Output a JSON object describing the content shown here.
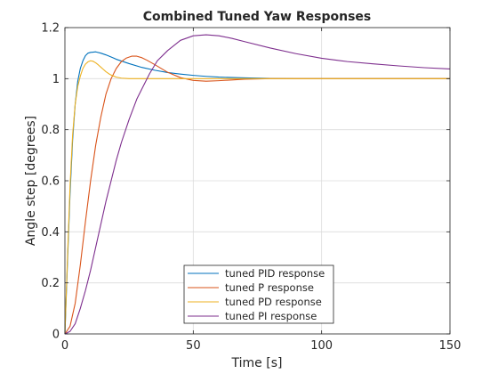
{
  "chart_data": {
    "type": "line",
    "title": "Combined Tuned Yaw Responses",
    "xlabel": "Time [s]",
    "ylabel": "Angle step [degrees]",
    "xlim": [
      0,
      150
    ],
    "ylim": [
      0,
      1.2
    ],
    "xticks": [
      0,
      50,
      100,
      150
    ],
    "yticks": [
      0,
      0.2,
      0.4,
      0.6,
      0.8,
      1,
      1.2
    ],
    "xtick_labels": [
      "0",
      "50",
      "100",
      "150"
    ],
    "ytick_labels": [
      "0",
      "0.2",
      "0.4",
      "0.6",
      "0.8",
      "1",
      "1.2"
    ],
    "grid": true,
    "legend_position": "bottom-center",
    "series": [
      {
        "name": "tuned PID response",
        "color": "#0072BD",
        "x": [
          0,
          1,
          2,
          3,
          4,
          5,
          6,
          7,
          8,
          9,
          10,
          11,
          12,
          14,
          16,
          18,
          20,
          25,
          30,
          35,
          40,
          45,
          50,
          55,
          60,
          70,
          80,
          90,
          100,
          110,
          120,
          130,
          140,
          150
        ],
        "y": [
          0,
          0.28,
          0.55,
          0.76,
          0.9,
          0.99,
          1.04,
          1.07,
          1.09,
          1.1,
          1.103,
          1.104,
          1.105,
          1.1,
          1.093,
          1.085,
          1.076,
          1.059,
          1.044,
          1.033,
          1.024,
          1.018,
          1.013,
          1.009,
          1.006,
          1.003,
          1.001,
          1.0,
          1.0,
          1.0,
          1.0,
          1.0,
          1.0,
          1.0
        ]
      },
      {
        "name": "tuned P response",
        "color": "#D95319",
        "x": [
          0,
          2,
          4,
          6,
          8,
          10,
          12,
          14,
          16,
          18,
          20,
          22,
          24,
          26,
          28,
          30,
          32,
          35,
          40,
          45,
          50,
          55,
          60,
          65,
          70,
          80,
          90,
          100,
          110,
          120,
          130,
          140,
          150
        ],
        "y": [
          0,
          0.03,
          0.12,
          0.27,
          0.44,
          0.6,
          0.74,
          0.85,
          0.94,
          1.0,
          1.04,
          1.067,
          1.081,
          1.088,
          1.088,
          1.082,
          1.072,
          1.055,
          1.025,
          1.004,
          0.993,
          0.99,
          0.992,
          0.995,
          0.998,
          1.0,
          1.0,
          1.0,
          1.0,
          1.0,
          1.0,
          1.0,
          1.0
        ]
      },
      {
        "name": "tuned PD response",
        "color": "#EDB120",
        "x": [
          0,
          1,
          2,
          3,
          4,
          5,
          6,
          7,
          8,
          9,
          10,
          11,
          12,
          13,
          14,
          15,
          16,
          17,
          18,
          20,
          22,
          25,
          30,
          40,
          50,
          60,
          80,
          100,
          120,
          150
        ],
        "y": [
          0,
          0.3,
          0.58,
          0.78,
          0.9,
          0.97,
          1.01,
          1.04,
          1.057,
          1.066,
          1.07,
          1.068,
          1.062,
          1.054,
          1.045,
          1.036,
          1.027,
          1.02,
          1.014,
          1.006,
          1.002,
          1.0,
          1.0,
          1.0,
          1.0,
          1.0,
          1.0,
          1.0,
          1.0,
          1.0
        ]
      },
      {
        "name": "tuned PI response",
        "color": "#7E2F8E",
        "x": [
          0,
          2,
          4,
          6,
          8,
          10,
          12,
          14,
          16,
          18,
          20,
          22,
          25,
          28,
          30,
          33,
          36,
          40,
          45,
          50,
          55,
          60,
          65,
          70,
          80,
          90,
          100,
          110,
          120,
          130,
          140,
          150
        ],
        "y": [
          0,
          0.01,
          0.04,
          0.1,
          0.17,
          0.25,
          0.34,
          0.43,
          0.52,
          0.6,
          0.68,
          0.75,
          0.84,
          0.92,
          0.96,
          1.02,
          1.07,
          1.11,
          1.15,
          1.168,
          1.172,
          1.168,
          1.158,
          1.145,
          1.12,
          1.098,
          1.08,
          1.067,
          1.058,
          1.05,
          1.043,
          1.038
        ]
      }
    ]
  }
}
